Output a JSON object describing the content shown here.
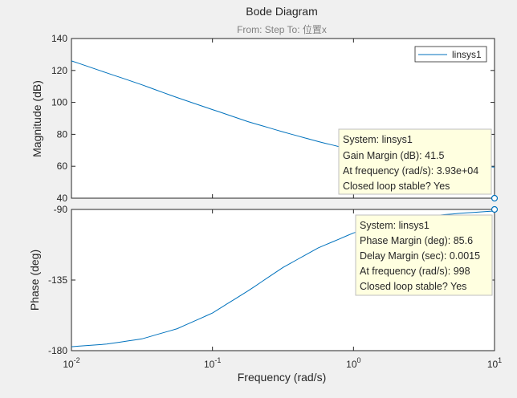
{
  "chart_data": {
    "type": "line",
    "title": "Bode Diagram",
    "subtitle": "From: Step  To: 位置x",
    "xlabel": "Frequency  (rad/s)",
    "xscale": "log",
    "xlim": [
      0.01,
      10
    ],
    "x_ticks": [
      {
        "value": 0.01,
        "base": "10",
        "exp": "-2"
      },
      {
        "value": 0.1,
        "base": "10",
        "exp": "-1"
      },
      {
        "value": 1,
        "base": "10",
        "exp": "0"
      },
      {
        "value": 10,
        "base": "10",
        "exp": "1"
      }
    ],
    "grid": false,
    "line_color": "#0072bd",
    "panels": [
      {
        "id": "magnitude",
        "ylabel": "Magnitude (dB)",
        "ylim": [
          40,
          140
        ],
        "yticks": [
          40,
          60,
          80,
          100,
          120,
          140
        ],
        "ytick_labels": [
          "40",
          "60",
          "80",
          "100",
          "120",
          "140"
        ],
        "series": [
          {
            "name": "linsys1",
            "x": [
              0.01,
              0.0178,
              0.0316,
              0.0562,
              0.1,
              0.178,
              0.316,
              0.562,
              1,
              1.78,
              3.16,
              5.62,
              10
            ],
            "y": [
              126,
              118.5,
              111,
              103,
              95.5,
              88,
              81.5,
              75.5,
              70,
              65.5,
              62,
              60.5,
              59.5
            ]
          }
        ],
        "marker": {
          "x": 10,
          "y": 40
        },
        "legend": {
          "position": "top-right",
          "entries": [
            "linsys1"
          ]
        },
        "datatip": {
          "lines": [
            "System: linsys1",
            "Gain Margin (dB): 41.5",
            "At frequency (rad/s): 3.93e+04",
            "Closed loop stable? Yes"
          ]
        }
      },
      {
        "id": "phase",
        "ylabel": "Phase (deg)",
        "ylim": [
          -180,
          -90
        ],
        "yticks": [
          -180,
          -135,
          -90
        ],
        "ytick_labels": [
          "-180",
          "-135",
          "-90"
        ],
        "series": [
          {
            "name": "linsys1",
            "x": [
              0.01,
              0.0178,
              0.0316,
              0.0562,
              0.1,
              0.178,
              0.316,
              0.562,
              1,
              1.78,
              3.16,
              5.62,
              10
            ],
            "y": [
              -177.5,
              -175.8,
              -172.5,
              -166,
              -156,
              -142,
              -127,
              -114.5,
              -105,
              -98.5,
              -94.5,
              -92.5,
              -91
            ]
          }
        ],
        "marker": {
          "x": 10,
          "y": -90
        },
        "datatip": {
          "lines": [
            "System: linsys1",
            "Phase Margin (deg): 85.6",
            "Delay Margin (sec): 0.0015",
            "At frequency (rad/s): 998",
            "Closed loop stable? Yes"
          ]
        }
      }
    ]
  }
}
